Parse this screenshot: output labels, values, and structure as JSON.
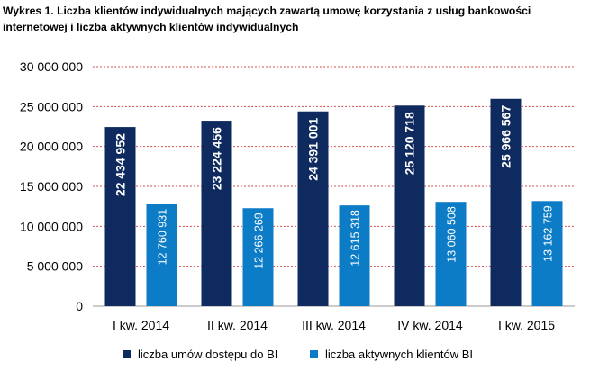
{
  "title": "Wykres 1. Liczba klientów indywidualnych mających zawartą umowę korzystania z usług bankowości internetowej i liczba aktywnych klientów indywidualnych",
  "colors": {
    "series1": "#0f2a5e",
    "series2": "#0d7cc6",
    "grid": "#d9534f"
  },
  "chart_data": {
    "type": "bar",
    "categories": [
      "I kw. 2014",
      "II kw. 2014",
      "III kw. 2014",
      "IV kw. 2014",
      "I kw. 2015"
    ],
    "series": [
      {
        "name": "liczba umów dostępu do BI",
        "values": [
          22434952,
          23224456,
          24391001,
          25120718,
          25966567
        ],
        "labels": [
          "22 434 952",
          "23 224 456",
          "24 391 001",
          "25 120 718",
          "25 966 567"
        ]
      },
      {
        "name": "liczba aktywnych klientów BI",
        "values": [
          12760931,
          12266269,
          12615318,
          13060508,
          13162759
        ],
        "labels": [
          "12 760 931",
          "12 266 269",
          "12 615 318",
          "13 060 508",
          "13 162 759"
        ]
      }
    ],
    "yticks": [
      "0",
      "5 000 000",
      "10 000 000",
      "15 000 000",
      "20 000 000",
      "25 000 000",
      "30 000 000"
    ],
    "ylim": [
      0,
      30000000
    ],
    "grid": true,
    "legend_position": "bottom"
  }
}
